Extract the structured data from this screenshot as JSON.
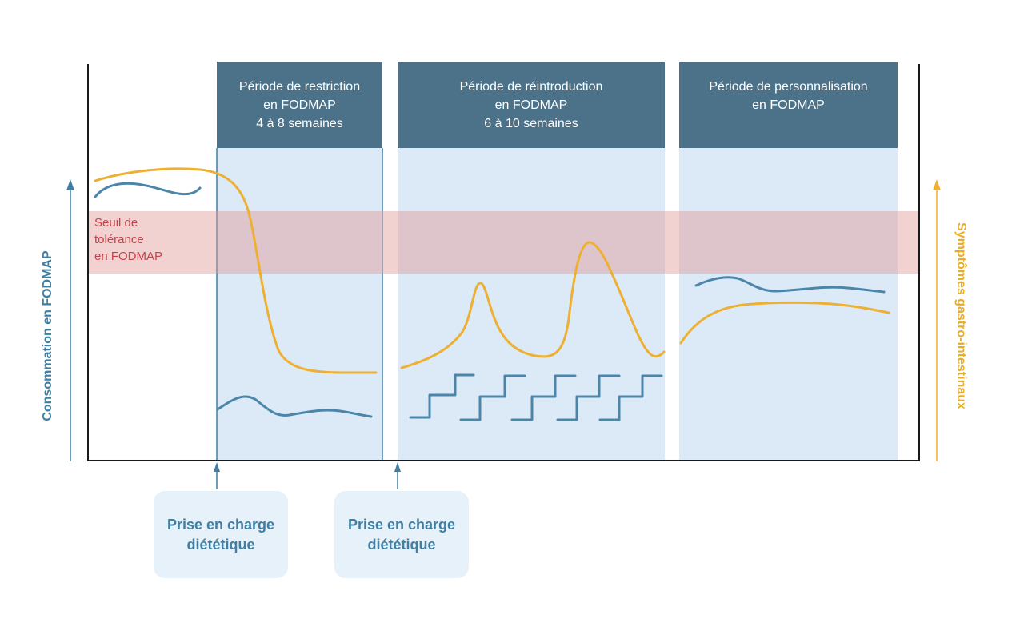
{
  "phases": [
    {
      "line1": "Période de restriction",
      "line2": "en FODMAP",
      "line3": "4 à 8 semaines"
    },
    {
      "line1": "Période de réintroduction",
      "line2": "en FODMAP",
      "line3": "6 à 10 semaines"
    },
    {
      "line1": "Période de personnalisation",
      "line2": "en FODMAP",
      "line3": ""
    }
  ],
  "threshold": {
    "line1": "Seuil de",
    "line2": "tolérance",
    "line3": "en FODMAP"
  },
  "axes": {
    "left_title": "Consommation en FODMAP",
    "right_title": "Symptômes gastro-intestinaux"
  },
  "care_boxes": [
    {
      "line1": "Prise en charge",
      "line2": "diététique"
    },
    {
      "line1": "Prise en charge",
      "line2": "diététique"
    }
  ],
  "colors": {
    "consumption": "#4b86aa",
    "symptoms": "#eeb033",
    "threshold_band": "#e5a4a4",
    "phase_header": "#4b7289",
    "phase_body": "#dbeaf6",
    "threshold_text": "#c8404a"
  }
}
